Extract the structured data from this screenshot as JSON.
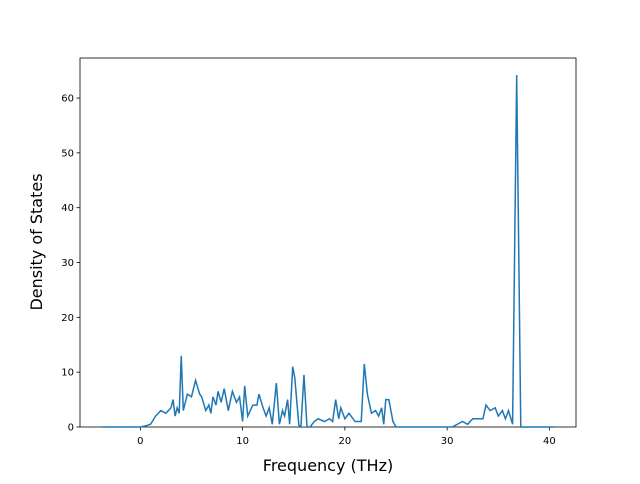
{
  "chart_data": {
    "type": "line",
    "xlabel": "Frequency (THz)",
    "ylabel": "Density of States",
    "xlim": [
      -5.9,
      42.6
    ],
    "ylim": [
      0,
      67.3
    ],
    "xticks": [
      0,
      10,
      20,
      30,
      40
    ],
    "yticks": [
      0,
      10,
      20,
      30,
      40,
      50,
      60
    ],
    "series": [
      {
        "color": "#1f77b4",
        "x": [
          -3.7,
          -1,
          0,
          0.5,
          1,
          1.5,
          2,
          2.5,
          3,
          3.2,
          3.4,
          3.6,
          3.8,
          4,
          4.2,
          4.6,
          5,
          5.4,
          5.8,
          6,
          6.4,
          6.7,
          6.9,
          7.1,
          7.4,
          7.6,
          7.9,
          8.2,
          8.6,
          9,
          9.4,
          9.7,
          10,
          10.2,
          10.5,
          11,
          11.4,
          11.6,
          12,
          12.3,
          12.6,
          12.9,
          13.3,
          13.6,
          13.9,
          14.1,
          14.4,
          14.6,
          14.9,
          15.1,
          15.5,
          15.7,
          16,
          16.3,
          16.6,
          17,
          17.4,
          18,
          18.5,
          18.8,
          19.1,
          19.4,
          19.6,
          20,
          20.4,
          21,
          21.6,
          21.9,
          22.2,
          22.6,
          23,
          23.3,
          23.6,
          23.8,
          24,
          24.3,
          24.7,
          25,
          30.5,
          31,
          31.5,
          32,
          32.5,
          33,
          33.5,
          33.8,
          34.2,
          34.7,
          35,
          35.4,
          35.7,
          36,
          36.4,
          36.8,
          37.2,
          40.4
        ],
        "values": [
          0,
          0,
          0,
          0.2,
          0.5,
          2,
          3,
          2.5,
          3.5,
          5,
          2,
          3.5,
          2.5,
          13,
          3,
          6,
          5.5,
          8.5,
          6,
          5.5,
          3,
          4,
          2.5,
          5.5,
          4,
          6.5,
          4.5,
          7,
          3,
          6.5,
          4.5,
          5.5,
          1,
          7.5,
          2,
          4,
          4,
          6,
          3.5,
          2,
          3.5,
          0.5,
          8,
          0.5,
          3,
          2,
          5,
          0.5,
          11,
          9,
          0.3,
          0,
          9.5,
          0,
          0,
          1,
          1.5,
          1,
          1.5,
          1,
          5,
          1.5,
          3.5,
          1.5,
          2.5,
          1,
          1,
          11.5,
          6,
          2.5,
          3,
          2,
          3.5,
          0.5,
          5,
          5,
          1,
          0,
          0,
          0.5,
          1,
          0.5,
          1.5,
          1.5,
          1.5,
          4,
          3,
          3.5,
          2,
          3,
          1.5,
          3,
          0.5,
          64.2,
          0,
          0
        ]
      }
    ]
  }
}
